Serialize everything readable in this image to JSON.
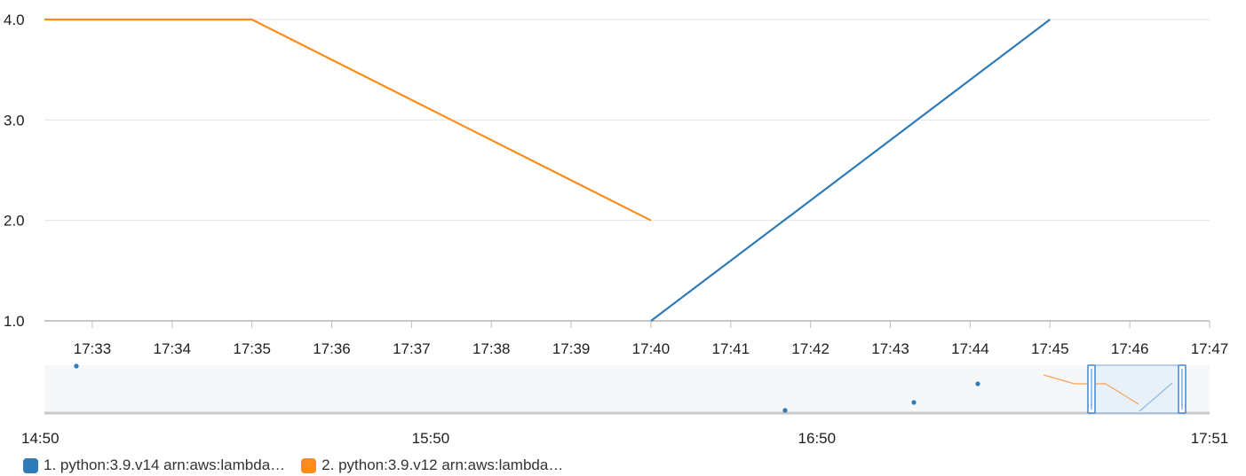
{
  "chart_data": {
    "type": "line",
    "y_ticks": [
      "4.0",
      "3.0",
      "2.0",
      "1.0"
    ],
    "y_values": [
      4,
      3,
      2,
      1
    ],
    "ylim": [
      1,
      4
    ],
    "x_ticks": [
      "17:33",
      "17:34",
      "17:35",
      "17:36",
      "17:37",
      "17:38",
      "17:39",
      "17:40",
      "17:41",
      "17:42",
      "17:43",
      "17:44",
      "17:45",
      "17:46",
      "17:47"
    ],
    "xlim": [
      "17:32.4",
      "17:47"
    ],
    "grid": "horizontal",
    "series": [
      {
        "name": "1. python:3.9.v14 arn:aws:lambda…",
        "color": "#2e7bb8",
        "x": [
          "17:40",
          "17:45"
        ],
        "y": [
          1,
          4
        ]
      },
      {
        "name": "2. python:3.9.v12 arn:aws:lambda…",
        "color": "#ff8c1a",
        "x": [
          "17:32.4",
          "17:35",
          "17:40"
        ],
        "y": [
          4,
          4,
          2
        ]
      }
    ],
    "overview": {
      "x_ticks": [
        "14:50",
        "15:50",
        "16:50",
        "17:51"
      ],
      "selected_range": [
        "17:32",
        "17:47"
      ]
    },
    "legend_position": "bottom-left"
  }
}
